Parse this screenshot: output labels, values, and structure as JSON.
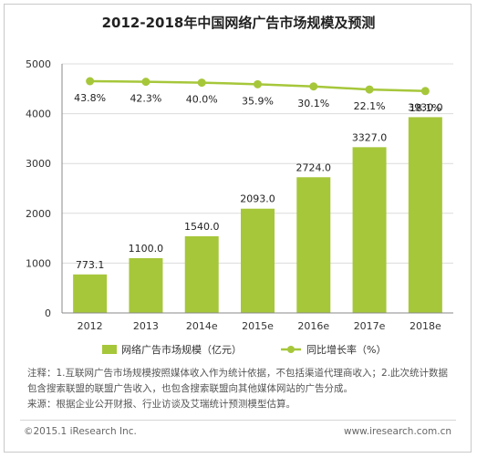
{
  "title": "2012-2018年中国网络广告市场规模及预测",
  "chart_data": {
    "type": "bar",
    "categories": [
      "2012",
      "2013",
      "2014e",
      "2015e",
      "2016e",
      "2017e",
      "2018e"
    ],
    "series": [
      {
        "name": "网络广告市场规模（亿元）",
        "type": "bar",
        "values": [
          773.1,
          1100.0,
          1540.0,
          2093.0,
          2724.0,
          3327.0,
          3930.0
        ],
        "value_labels": [
          "773.1",
          "1100.0",
          "1540.0",
          "2093.0",
          "2724.0",
          "3327.0",
          "3930.0"
        ],
        "color": "#a6c73a"
      },
      {
        "name": "同比增长率（%）",
        "type": "line",
        "values": [
          43.8,
          42.3,
          40.0,
          35.9,
          30.1,
          22.1,
          18.1
        ],
        "value_labels": [
          "43.8%",
          "42.3%",
          "40.0%",
          "35.9%",
          "30.1%",
          "22.1%",
          "18.1%"
        ],
        "color": "#a6c73a"
      }
    ],
    "yticks": [
      "0",
      "1000",
      "2000",
      "3000",
      "4000",
      "5000"
    ],
    "ylim": [
      0,
      5000
    ],
    "legend_position": "bottom"
  },
  "notes": {
    "line1": "注释：1.互联网广告市场规模按照媒体收入作为统计依据，不包括渠道代理商收入；2.此次统计数据包含搜索联盟的联盟广告收入，也包含搜索联盟向其他媒体网站的广告分成。",
    "line2": "来源：根据企业公开财报、行业访谈及艾瑞统计预测模型估算。"
  },
  "footer": {
    "left": "©2015.1 iResearch Inc.",
    "right": "www.iresearch.com.cn"
  }
}
